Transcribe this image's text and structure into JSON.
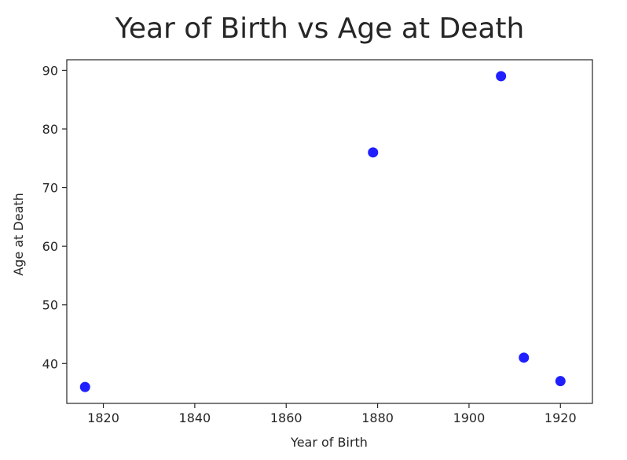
{
  "chart_data": {
    "type": "scatter",
    "title": "Year of Birth vs Age at Death",
    "xlabel": "Year of Birth",
    "ylabel": "Age at Death",
    "xlim": [
      1812,
      1927
    ],
    "ylim": [
      33.2,
      91.8
    ],
    "x_ticks": [
      1820,
      1840,
      1860,
      1880,
      1900,
      1920
    ],
    "y_ticks": [
      40,
      50,
      60,
      70,
      80,
      90
    ],
    "grid": false,
    "legend": "none",
    "marker_color": "#1f1fff",
    "points": [
      {
        "x": 1816,
        "y": 36
      },
      {
        "x": 1879,
        "y": 76
      },
      {
        "x": 1907,
        "y": 89
      },
      {
        "x": 1912,
        "y": 41
      },
      {
        "x": 1920,
        "y": 37
      }
    ]
  }
}
